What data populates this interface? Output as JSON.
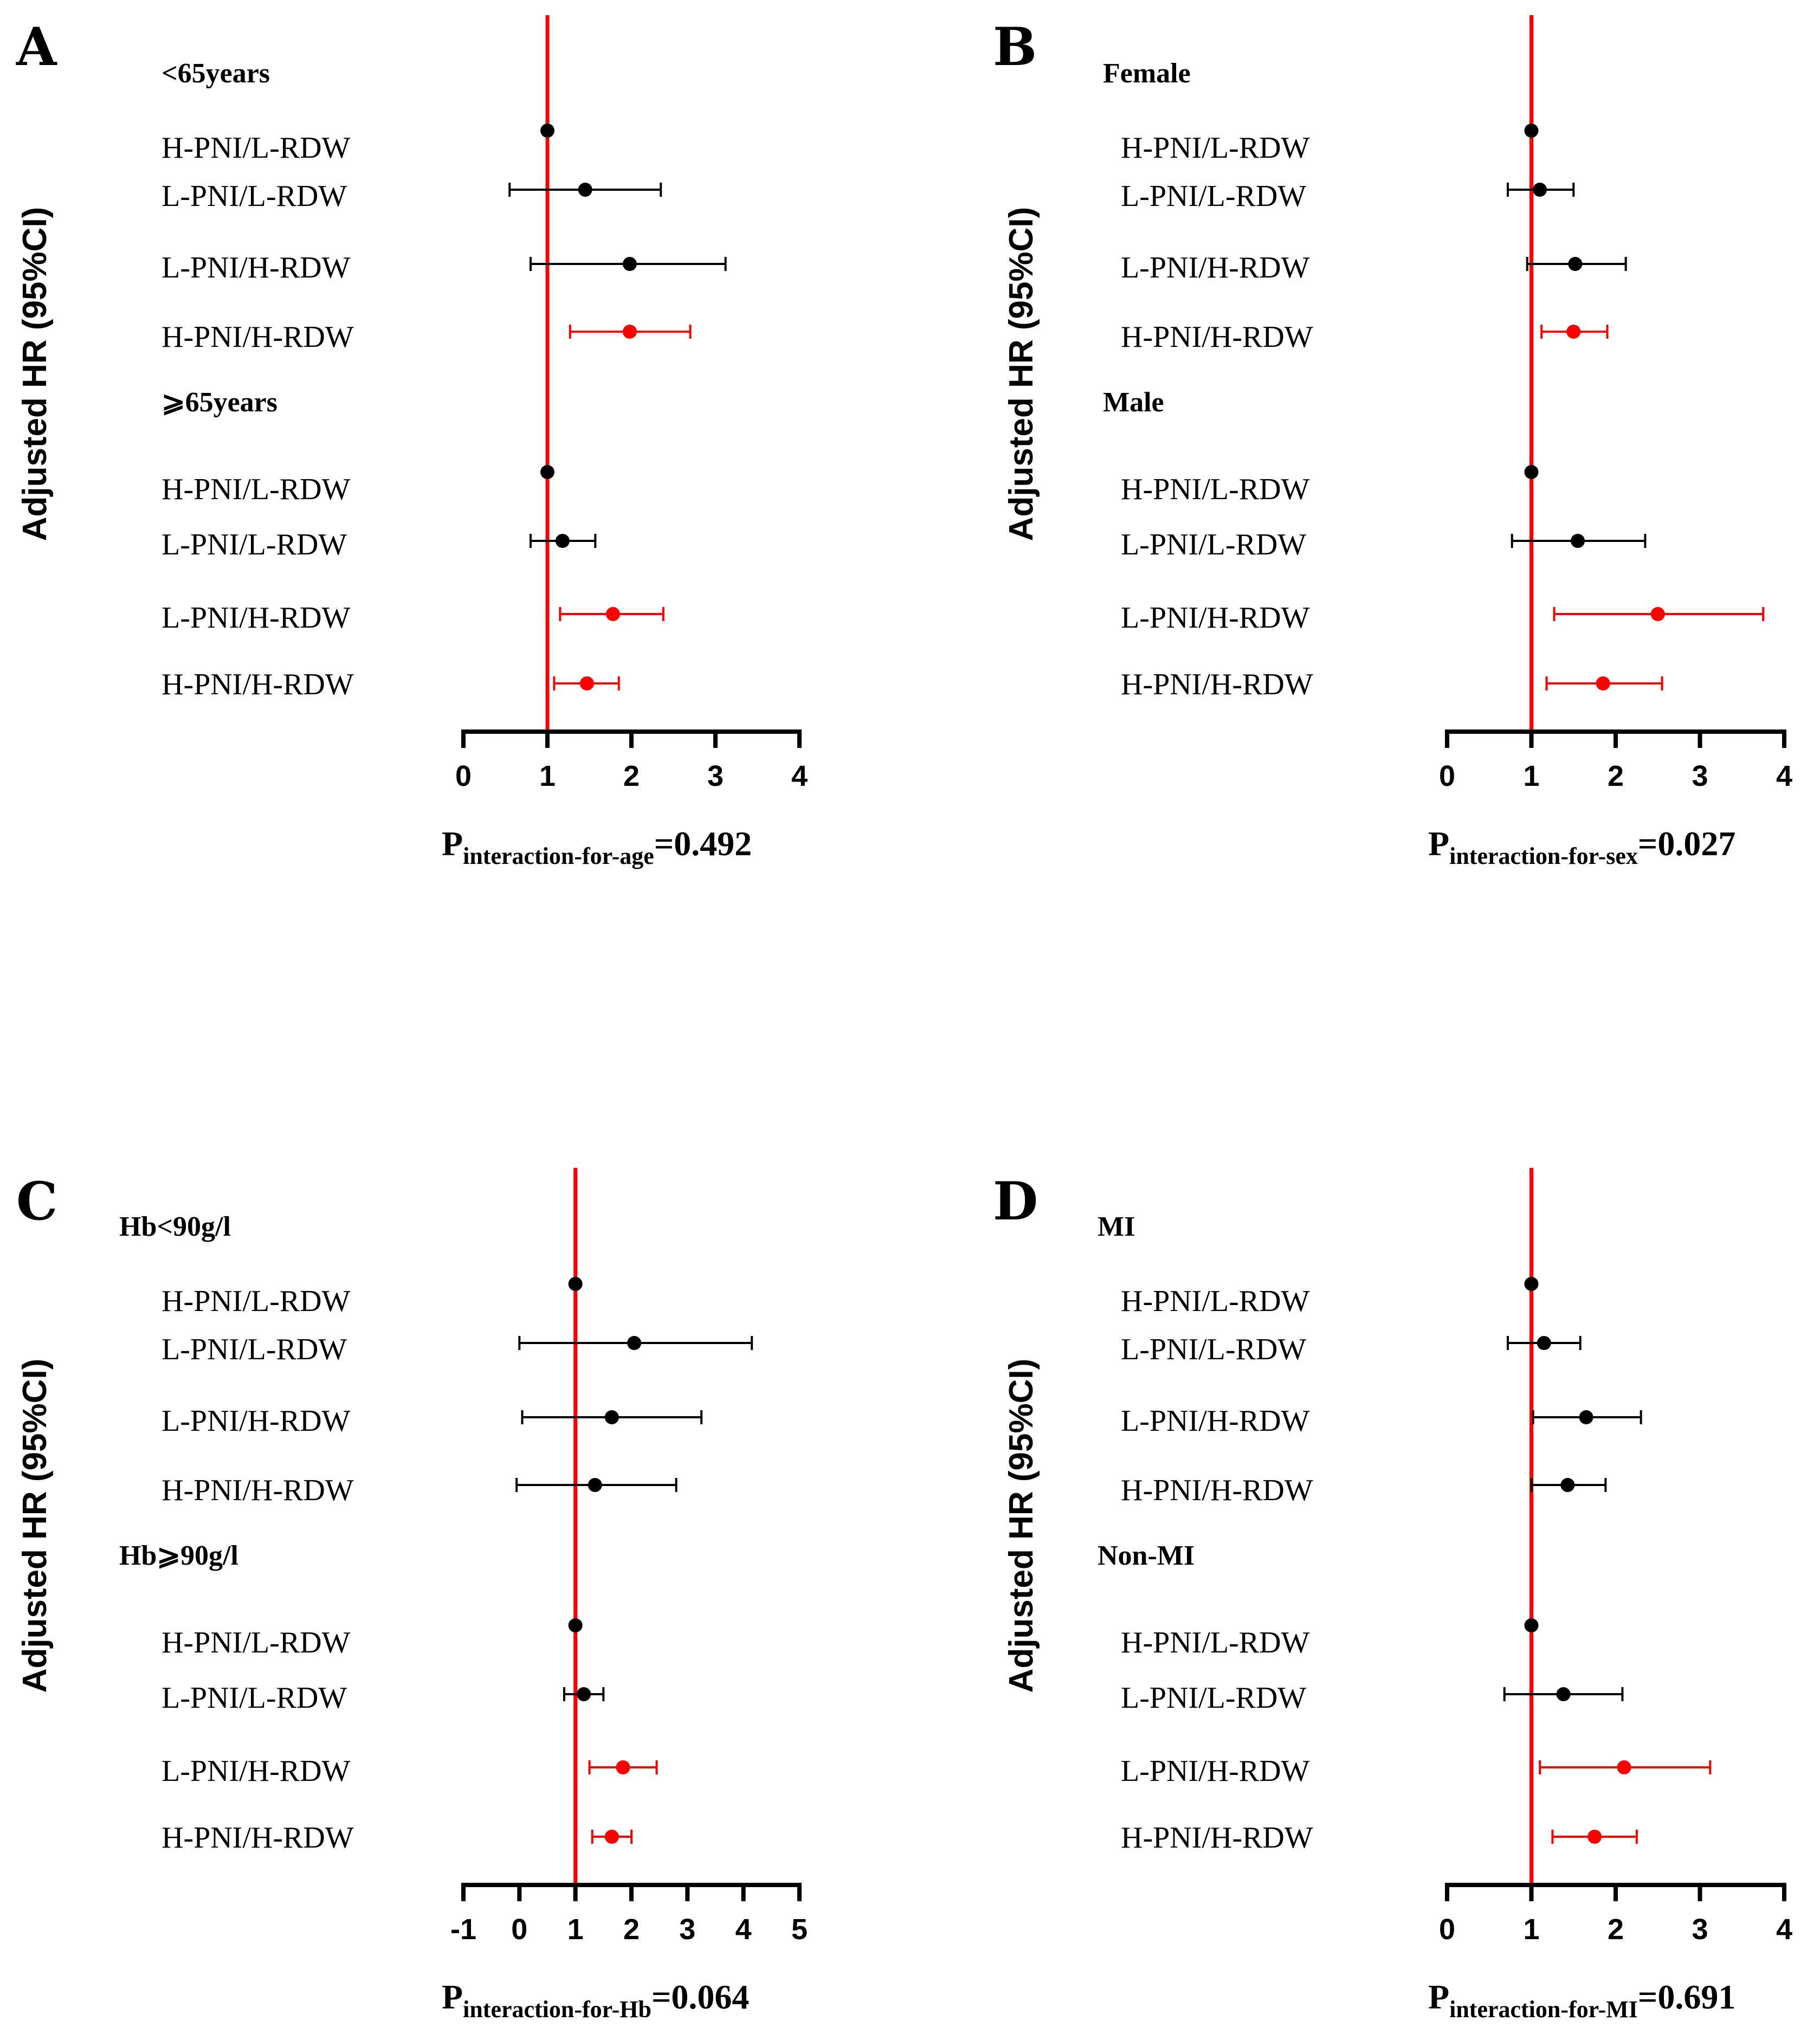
{
  "chart_data": [
    {
      "type": "forest",
      "panel": "A",
      "ylabel": "Adjusted HR (95%CI)",
      "xlim": [
        0,
        4
      ],
      "xticks": [
        "0",
        "1",
        "2",
        "3",
        "4"
      ],
      "reference_line": 1,
      "p_main": "P",
      "p_sub": "interaction-for-age",
      "p_value": "=0.492",
      "groups": [
        {
          "name": "<65years",
          "rows": [
            {
              "label": "H-PNI/L-RDW",
              "hr": 1.0,
              "lo": null,
              "hi": null,
              "color": "#000000"
            },
            {
              "label": "L-PNI/L-RDW",
              "hr": 1.45,
              "lo": 0.55,
              "hi": 2.35,
              "color": "#000000"
            },
            {
              "label": "L-PNI/H-RDW",
              "hr": 1.98,
              "lo": 0.8,
              "hi": 3.12,
              "color": "#000000"
            },
            {
              "label": "H-PNI/H-RDW",
              "hr": 1.98,
              "lo": 1.27,
              "hi": 2.7,
              "color": "#ff0000"
            }
          ]
        },
        {
          "name": "⩾65years",
          "rows": [
            {
              "label": "H-PNI/L-RDW",
              "hr": 1.0,
              "lo": null,
              "hi": null,
              "color": "#000000"
            },
            {
              "label": "L-PNI/L-RDW",
              "hr": 1.18,
              "lo": 0.8,
              "hi": 1.57,
              "color": "#000000"
            },
            {
              "label": "L-PNI/H-RDW",
              "hr": 1.78,
              "lo": 1.15,
              "hi": 2.38,
              "color": "#ff0000"
            },
            {
              "label": "H-PNI/H-RDW",
              "hr": 1.47,
              "lo": 1.08,
              "hi": 1.85,
              "color": "#ff0000"
            }
          ]
        }
      ]
    },
    {
      "type": "forest",
      "panel": "B",
      "ylabel": "Adjusted HR (95%CI)",
      "xlim": [
        0,
        4
      ],
      "xticks": [
        "0",
        "1",
        "2",
        "3",
        "4"
      ],
      "reference_line": 1,
      "p_main": "P",
      "p_sub": "interaction-for-sex",
      "p_value": "=0.027",
      "groups": [
        {
          "name": "Female",
          "rows": [
            {
              "label": "H-PNI/L-RDW",
              "hr": 1.0,
              "lo": null,
              "hi": null,
              "color": "#000000"
            },
            {
              "label": "L-PNI/L-RDW",
              "hr": 1.1,
              "lo": 0.72,
              "hi": 1.5,
              "color": "#000000"
            },
            {
              "label": "L-PNI/H-RDW",
              "hr": 1.52,
              "lo": 0.95,
              "hi": 2.12,
              "color": "#000000"
            },
            {
              "label": "H-PNI/H-RDW",
              "hr": 1.5,
              "lo": 1.12,
              "hi": 1.9,
              "color": "#ff0000"
            }
          ]
        },
        {
          "name": "Male",
          "rows": [
            {
              "label": "H-PNI/L-RDW",
              "hr": 1.0,
              "lo": null,
              "hi": null,
              "color": "#000000"
            },
            {
              "label": "L-PNI/L-RDW",
              "hr": 1.55,
              "lo": 0.77,
              "hi": 2.35,
              "color": "#000000"
            },
            {
              "label": "L-PNI/H-RDW",
              "hr": 2.5,
              "lo": 1.27,
              "hi": 3.75,
              "color": "#ff0000"
            },
            {
              "label": "H-PNI/H-RDW",
              "hr": 1.85,
              "lo": 1.18,
              "hi": 2.55,
              "color": "#ff0000"
            }
          ]
        }
      ]
    },
    {
      "type": "forest",
      "panel": "C",
      "ylabel": "Adjusted HR (95%CI)",
      "xlim": [
        -1,
        5
      ],
      "xticks": [
        "-1",
        "0",
        "1",
        "2",
        "3",
        "4",
        "5"
      ],
      "reference_line": 1,
      "p_main": "P",
      "p_sub": "interaction-for-Hb",
      "p_value": "=0.064",
      "groups": [
        {
          "name": "Hb<90g/l",
          "rows": [
            {
              "label": "H-PNI/L-RDW",
              "hr": 1.0,
              "lo": null,
              "hi": null,
              "color": "#000000"
            },
            {
              "label": "L-PNI/L-RDW",
              "hr": 2.05,
              "lo": 0.0,
              "hi": 4.15,
              "color": "#000000"
            },
            {
              "label": "L-PNI/H-RDW",
              "hr": 1.65,
              "lo": 0.05,
              "hi": 3.25,
              "color": "#000000"
            },
            {
              "label": "H-PNI/H-RDW",
              "hr": 1.35,
              "lo": -0.05,
              "hi": 2.8,
              "color": "#000000"
            }
          ]
        },
        {
          "name": "Hb⩾90g/l",
          "rows": [
            {
              "label": "H-PNI/L-RDW",
              "hr": 1.0,
              "lo": null,
              "hi": null,
              "color": "#000000"
            },
            {
              "label": "L-PNI/L-RDW",
              "hr": 1.15,
              "lo": 0.8,
              "hi": 1.5,
              "color": "#000000"
            },
            {
              "label": "L-PNI/H-RDW",
              "hr": 1.85,
              "lo": 1.25,
              "hi": 2.45,
              "color": "#ff0000"
            },
            {
              "label": "H-PNI/H-RDW",
              "hr": 1.65,
              "lo": 1.3,
              "hi": 2.0,
              "color": "#ff0000"
            }
          ]
        }
      ]
    },
    {
      "type": "forest",
      "panel": "D",
      "ylabel": "Adjusted HR (95%CI)",
      "xlim": [
        0,
        4
      ],
      "xticks": [
        "0",
        "1",
        "2",
        "3",
        "4"
      ],
      "reference_line": 1,
      "p_main": "P",
      "p_sub": "interaction-for-MI",
      "p_value": "=0.691",
      "groups": [
        {
          "name": "MI",
          "rows": [
            {
              "label": "H-PNI/L-RDW",
              "hr": 1.0,
              "lo": null,
              "hi": null,
              "color": "#000000"
            },
            {
              "label": "L-PNI/L-RDW",
              "hr": 1.15,
              "lo": 0.72,
              "hi": 1.58,
              "color": "#000000"
            },
            {
              "label": "L-PNI/H-RDW",
              "hr": 1.65,
              "lo": 1.02,
              "hi": 2.3,
              "color": "#000000"
            },
            {
              "label": "H-PNI/H-RDW",
              "hr": 1.43,
              "lo": 1.0,
              "hi": 1.88,
              "color": "#000000"
            }
          ]
        },
        {
          "name": "Non-MI",
          "rows": [
            {
              "label": "H-PNI/L-RDW",
              "hr": 1.0,
              "lo": null,
              "hi": null,
              "color": "#000000"
            },
            {
              "label": "L-PNI/L-RDW",
              "hr": 1.38,
              "lo": 0.68,
              "hi": 2.08,
              "color": "#000000"
            },
            {
              "label": "L-PNI/H-RDW",
              "hr": 2.1,
              "lo": 1.1,
              "hi": 3.12,
              "color": "#ff0000"
            },
            {
              "label": "H-PNI/H-RDW",
              "hr": 1.75,
              "lo": 1.25,
              "hi": 2.25,
              "color": "#ff0000"
            }
          ]
        }
      ]
    }
  ],
  "colors": {
    "reference_line": "#ff0000",
    "significant": "#ff0000",
    "nonsignificant": "#000000"
  }
}
